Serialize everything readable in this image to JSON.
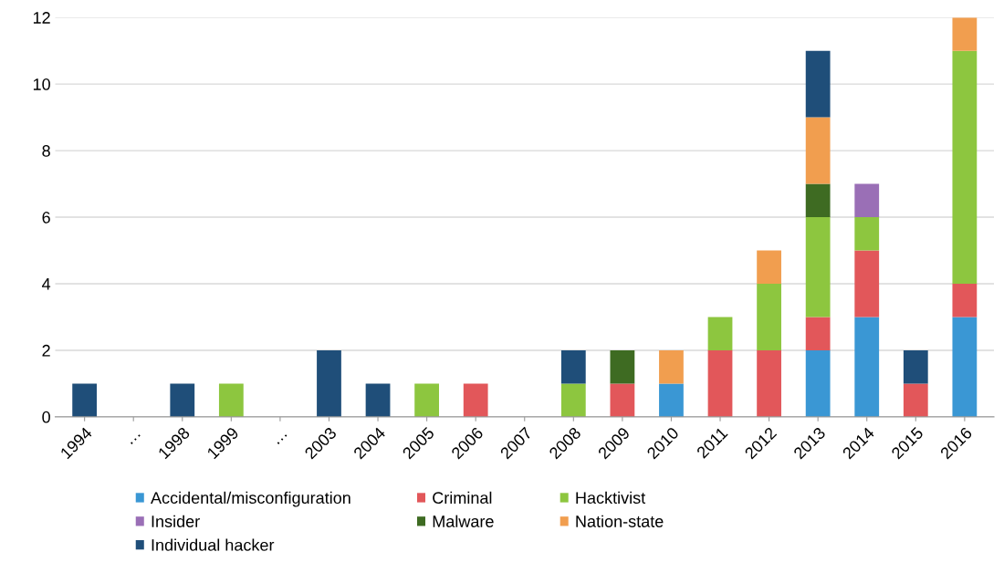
{
  "chart_data": {
    "type": "bar",
    "stacked": true,
    "categories": [
      "1994",
      "…",
      "1998",
      "1999",
      "…",
      "2003",
      "2004",
      "2005",
      "2006",
      "2007",
      "2008",
      "2009",
      "2010",
      "2011",
      "2012",
      "2013",
      "2014",
      "2015",
      "2016"
    ],
    "series": [
      {
        "name": "Accidental/misconfiguration",
        "color": "#3a97d4",
        "values": [
          0,
          0,
          0,
          0,
          0,
          0,
          0,
          0,
          0,
          0,
          0,
          0,
          1,
          0,
          0,
          2,
          3,
          0,
          3
        ]
      },
      {
        "name": "Criminal",
        "color": "#e2575a",
        "values": [
          0,
          0,
          0,
          0,
          0,
          0,
          0,
          0,
          1,
          0,
          0,
          1,
          0,
          2,
          2,
          1,
          2,
          1,
          1
        ]
      },
      {
        "name": "Hacktivist",
        "color": "#8dc63f",
        "values": [
          0,
          0,
          0,
          1,
          0,
          0,
          0,
          1,
          0,
          0,
          1,
          0,
          0,
          1,
          2,
          3,
          1,
          0,
          7
        ]
      },
      {
        "name": "Insider",
        "color": "#9a6fb6",
        "values": [
          0,
          0,
          0,
          0,
          0,
          0,
          0,
          0,
          0,
          0,
          0,
          0,
          0,
          0,
          0,
          0,
          1,
          0,
          0
        ]
      },
      {
        "name": "Malware",
        "color": "#3e6b22",
        "values": [
          0,
          0,
          0,
          0,
          0,
          0,
          0,
          0,
          0,
          0,
          0,
          1,
          0,
          0,
          0,
          1,
          0,
          0,
          0
        ]
      },
      {
        "name": "Nation-state",
        "color": "#f19e4f",
        "values": [
          0,
          0,
          0,
          0,
          0,
          0,
          0,
          0,
          0,
          0,
          0,
          0,
          1,
          0,
          1,
          2,
          0,
          0,
          1
        ]
      },
      {
        "name": "Individual hacker",
        "color": "#1f4e79",
        "values": [
          1,
          0,
          1,
          0,
          0,
          2,
          1,
          0,
          0,
          0,
          1,
          0,
          0,
          0,
          0,
          2,
          0,
          1,
          0
        ]
      }
    ],
    "ylim": [
      0,
      12
    ],
    "yticks": [
      0,
      2,
      4,
      6,
      8,
      10,
      12
    ],
    "grid": "y",
    "legend": "bottom"
  }
}
